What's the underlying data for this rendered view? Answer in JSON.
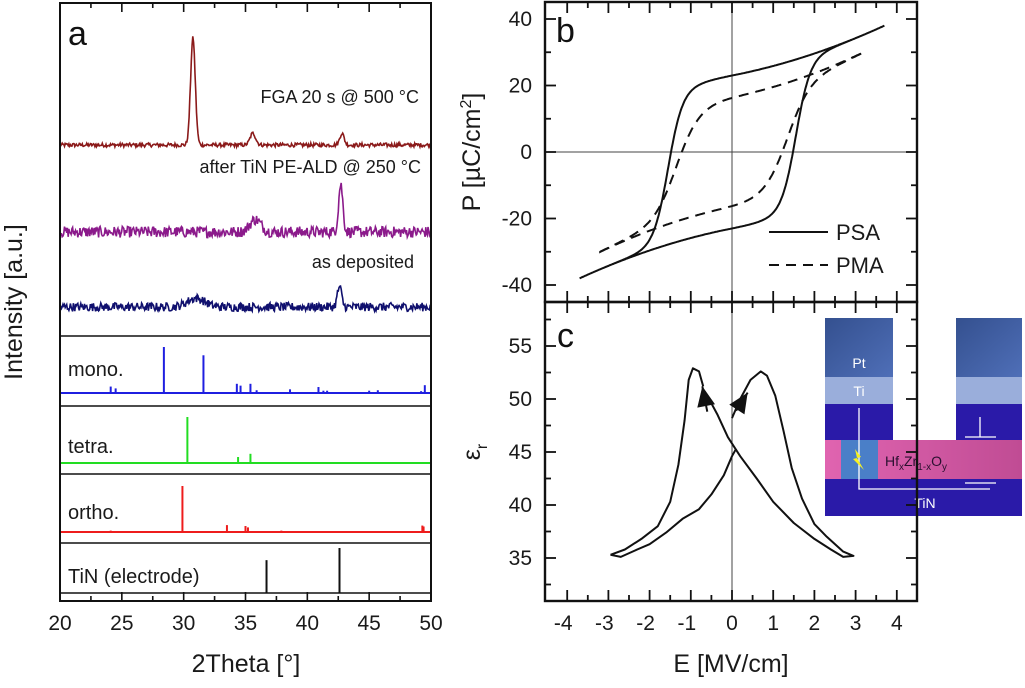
{
  "figure": {
    "panels": [
      "a",
      "b",
      "c"
    ]
  },
  "chart_data": [
    {
      "panel": "a",
      "type": "line",
      "title": "",
      "xlabel": "2Theta [°]",
      "ylabel": "Intensity [a.u.]",
      "xlim": [
        20,
        50
      ],
      "xticks": [
        20,
        25,
        30,
        35,
        40,
        45,
        50
      ],
      "grid": false,
      "panel_letter": "a",
      "measured_series": [
        {
          "name": "FGA 20 s @ 500 °C",
          "color": "#8b1a1a",
          "baseline": 0.0,
          "noise": 0.018,
          "peaks": [
            {
              "x": 30.75,
              "height": 1.0,
              "width": 0.38
            },
            {
              "x": 35.6,
              "height": 0.11,
              "width": 0.45
            },
            {
              "x": 42.8,
              "height": 0.11,
              "width": 0.35
            }
          ]
        },
        {
          "name": "after TiN PE-ALD @ 250 °C",
          "color": "#8b1a8b",
          "baseline": 0.0,
          "noise": 0.045,
          "peaks": [
            {
              "x": 35.8,
              "height": 0.1,
              "width": 0.9
            },
            {
              "x": 42.7,
              "height": 0.38,
              "width": 0.35
            }
          ]
        },
        {
          "name": "as deposited",
          "color": "#10106e",
          "baseline": 0.0,
          "noise": 0.035,
          "peaks": [
            {
              "x": 31.0,
              "height": 0.07,
              "width": 1.4
            },
            {
              "x": 42.6,
              "height": 0.16,
              "width": 0.35
            }
          ]
        }
      ],
      "reference_patterns": [
        {
          "name": "mono.",
          "color": "#1f1fe0",
          "lines": [
            {
              "x": 24.1,
              "h": 0.14
            },
            {
              "x": 24.5,
              "h": 0.1
            },
            {
              "x": 28.4,
              "h": 1.0
            },
            {
              "x": 31.6,
              "h": 0.82
            },
            {
              "x": 34.3,
              "h": 0.2
            },
            {
              "x": 34.6,
              "h": 0.16
            },
            {
              "x": 35.4,
              "h": 0.2
            },
            {
              "x": 35.9,
              "h": 0.06
            },
            {
              "x": 38.6,
              "h": 0.08
            },
            {
              "x": 40.1,
              "h": 0.02
            },
            {
              "x": 40.9,
              "h": 0.13
            },
            {
              "x": 41.3,
              "h": 0.05
            },
            {
              "x": 41.6,
              "h": 0.05
            },
            {
              "x": 45.0,
              "h": 0.05
            },
            {
              "x": 45.7,
              "h": 0.06
            },
            {
              "x": 49.2,
              "h": 0.04
            },
            {
              "x": 49.5,
              "h": 0.17
            }
          ]
        },
        {
          "name": "tetra.",
          "color": "#22dd22",
          "lines": [
            {
              "x": 30.3,
              "h": 1.0
            },
            {
              "x": 34.4,
              "h": 0.13
            },
            {
              "x": 35.4,
              "h": 0.2
            }
          ]
        },
        {
          "name": "ortho.",
          "color": "#ee1c1c",
          "lines": [
            {
              "x": 24.1,
              "h": 0.03
            },
            {
              "x": 29.9,
              "h": 1.0
            },
            {
              "x": 33.5,
              "h": 0.15
            },
            {
              "x": 35.0,
              "h": 0.13
            },
            {
              "x": 35.2,
              "h": 0.1
            },
            {
              "x": 37.9,
              "h": 0.03
            },
            {
              "x": 43.1,
              "h": 0.02
            },
            {
              "x": 49.3,
              "h": 0.14
            },
            {
              "x": 49.4,
              "h": 0.12
            }
          ]
        },
        {
          "name": "TiN (electrode)",
          "color": "#111111",
          "lines": [
            {
              "x": 36.7,
              "h": 0.73
            },
            {
              "x": 42.6,
              "h": 1.0
            }
          ]
        }
      ]
    },
    {
      "panel": "b",
      "type": "line",
      "title": "",
      "xlabel": "",
      "ylabel": "P [µC/cm²]",
      "ylabel_base": "P [µC/cm",
      "ylabel_sup": "2",
      "ylabel_end": "]",
      "xlim": [
        -4.5,
        4.5
      ],
      "ylim": [
        -44,
        45
      ],
      "yticks": [
        -40,
        -20,
        0,
        20,
        40
      ],
      "xticks": [
        -4,
        -3,
        -2,
        -1,
        0,
        1,
        2,
        3,
        4
      ],
      "zero_lines": true,
      "grid": false,
      "panel_letter": "b",
      "legend_position": "bottom-right",
      "series": [
        {
          "name": "PSA",
          "dash": "solid",
          "Emax": 3.7,
          "Pmax": 38.0,
          "Pr": 23.0,
          "Ec": 1.55,
          "switch_width": 0.35,
          "slope": 4.0
        },
        {
          "name": "PMA",
          "dash": "dashed",
          "Emax": 3.2,
          "Pmax": 30.0,
          "Pr": 16.5,
          "Ec": 1.35,
          "switch_width": 0.55,
          "slope": 3.2
        }
      ]
    },
    {
      "panel": "c",
      "type": "line",
      "title": "",
      "xlabel": "E [MV/cm]",
      "ylabel": "εr",
      "ylabel_base": "ε",
      "ylabel_sub": "r",
      "xlim": [
        -4.5,
        4.5
      ],
      "ylim": [
        32,
        58
      ],
      "yticks": [
        35,
        40,
        45,
        50,
        55
      ],
      "xticks": [
        -4,
        -3,
        -2,
        -1,
        0,
        1,
        2,
        3,
        4
      ],
      "zero_lines": true,
      "grid": false,
      "panel_letter": "c",
      "series": [
        {
          "name": "up-sweep",
          "points": [
            [
              -2.95,
              35.3
            ],
            [
              -2.7,
              35.1
            ],
            [
              -2.3,
              35.8
            ],
            [
              -2.0,
              36.3
            ],
            [
              -1.6,
              37.4
            ],
            [
              -1.2,
              38.7
            ],
            [
              -0.8,
              39.6
            ],
            [
              -0.5,
              41.0
            ],
            [
              -0.2,
              42.8
            ],
            [
              0.0,
              44.6
            ],
            [
              0.1,
              45.3
            ]
          ]
        },
        {
          "name": "up-sweep-peak-branch",
          "points": [
            [
              0.0,
              48.2
            ],
            [
              0.2,
              50.0
            ],
            [
              0.45,
              51.8
            ],
            [
              0.7,
              52.6
            ],
            [
              0.85,
              52.2
            ],
            [
              1.05,
              50.3
            ],
            [
              1.25,
              47.0
            ],
            [
              1.45,
              43.5
            ],
            [
              1.7,
              40.6
            ],
            [
              2.0,
              38.2
            ],
            [
              2.3,
              37.0
            ],
            [
              2.7,
              35.6
            ],
            [
              2.95,
              35.2
            ],
            [
              2.7,
              35.1
            ],
            [
              2.4,
              35.8
            ],
            [
              2.0,
              36.8
            ],
            [
              1.5,
              38.3
            ],
            [
              1.0,
              40.3
            ],
            [
              0.6,
              42.5
            ],
            [
              0.2,
              44.6
            ],
            [
              -0.1,
              46.4
            ],
            [
              -0.35,
              48.5
            ],
            [
              -0.6,
              50.3
            ]
          ]
        },
        {
          "name": "down-sweep-peak-branch",
          "points": [
            [
              -2.95,
              35.3
            ],
            [
              -2.6,
              35.8
            ],
            [
              -2.2,
              36.8
            ],
            [
              -1.8,
              38.0
            ],
            [
              -1.5,
              40.3
            ],
            [
              -1.3,
              43.8
            ],
            [
              -1.15,
              48.0
            ],
            [
              -1.05,
              51.8
            ],
            [
              -0.95,
              52.9
            ],
            [
              -0.8,
              52.6
            ],
            [
              -0.7,
              51.2
            ]
          ]
        }
      ],
      "arrows": [
        {
          "from": [
            -0.6,
            48.8
          ],
          "to": [
            -0.72,
            51.2
          ]
        },
        {
          "from": [
            0.1,
            48.9
          ],
          "to": [
            0.38,
            50.6
          ]
        }
      ],
      "inset": {
        "layers": [
          {
            "name": "Pt",
            "label": "Pt",
            "color": "#3d5fa8"
          },
          {
            "name": "Ti",
            "label": "Ti",
            "color": "#9aaedb"
          },
          {
            "name": "TiN-top",
            "label": "",
            "color": "#2a1aa8"
          },
          {
            "name": "HfZrO",
            "label_base": "Hf",
            "label_sub1": "x",
            "label_mid": "Zr",
            "label_sub2": "1-x",
            "label_o": "O",
            "label_sub3": "y",
            "color": "#d65aa6"
          },
          {
            "name": "TiN-bottom",
            "label": "TiN",
            "color": "#2a1aa8"
          }
        ],
        "probe_color": "#4a7fc8",
        "spark_color": "#f5f020"
      }
    }
  ]
}
